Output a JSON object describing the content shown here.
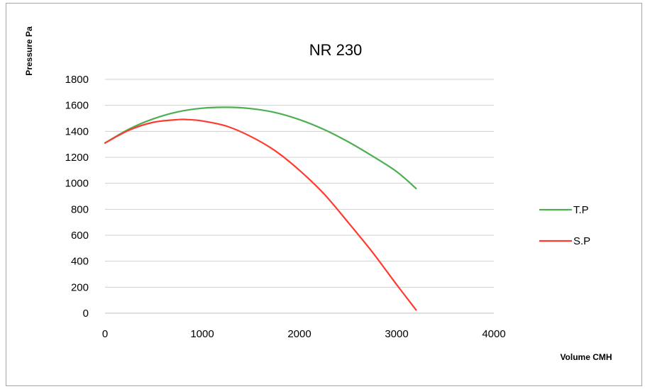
{
  "chart_data": {
    "type": "line",
    "title": "NR 230",
    "xlabel": "Volume CMH",
    "ylabel": "Pressure Pa",
    "xlim": [
      0,
      4000
    ],
    "ylim": [
      0,
      1800
    ],
    "x_ticks": [
      "0",
      "1000",
      "2000",
      "3000",
      "4000"
    ],
    "y_ticks": [
      "0",
      "200",
      "400",
      "600",
      "800",
      "1000",
      "1200",
      "1400",
      "1600",
      "1800"
    ],
    "grid": "horizontal",
    "legend_position": "right",
    "series": [
      {
        "name": "T.P",
        "color": "#4caf50",
        "x": [
          0,
          250,
          500,
          750,
          1000,
          1250,
          1500,
          1750,
          2000,
          2250,
          2500,
          2750,
          3000,
          3200
        ],
        "y": [
          1310,
          1418,
          1497,
          1550,
          1578,
          1585,
          1575,
          1545,
          1490,
          1415,
          1320,
          1210,
          1090,
          960
        ]
      },
      {
        "name": "S.P",
        "color": "#ff3b30",
        "x": [
          0,
          250,
          500,
          750,
          850,
          1000,
          1250,
          1500,
          1750,
          2000,
          2250,
          2500,
          2750,
          3000,
          3200
        ],
        "y": [
          1310,
          1410,
          1470,
          1490,
          1490,
          1480,
          1440,
          1360,
          1250,
          1100,
          920,
          700,
          470,
          220,
          25
        ]
      }
    ]
  }
}
